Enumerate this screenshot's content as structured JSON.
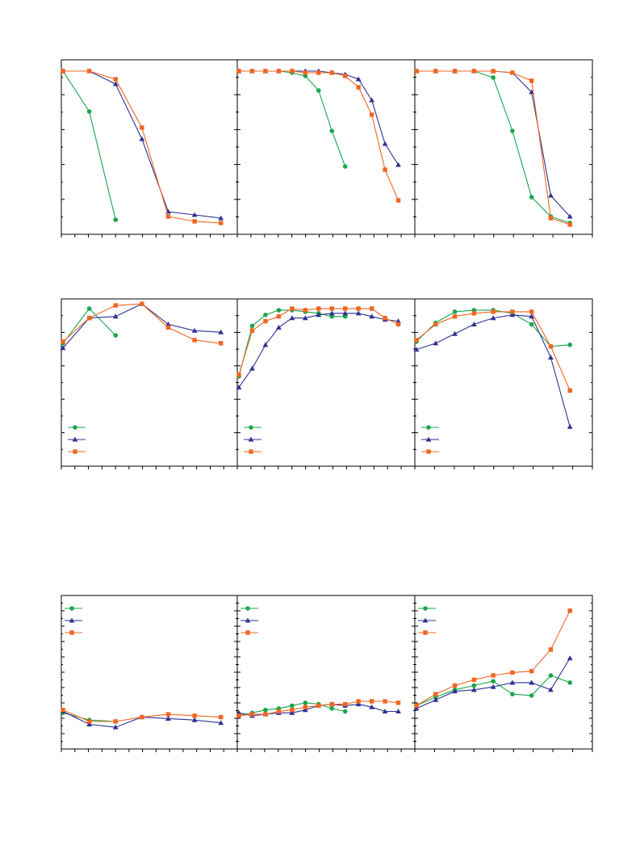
{
  "colors": {
    "green": "#1aa64a",
    "blue": "#2e3192",
    "orange": "#f26522",
    "axis": "#000000"
  },
  "chart_data": [
    {
      "type": "line",
      "row": 0,
      "col": 0,
      "ylim": [
        0,
        1.02
      ],
      "xlim": [
        0,
        13
      ],
      "series": [
        {
          "color": "green",
          "marker": "circle",
          "x": [
            0,
            2,
            4
          ],
          "y": [
            1.0,
            0.75,
            0.08
          ]
        },
        {
          "color": "blue",
          "marker": "triangle",
          "x": [
            0,
            2,
            4,
            6,
            8,
            10,
            12
          ],
          "y": [
            1.0,
            1.0,
            0.92,
            0.58,
            0.13,
            0.11,
            0.09
          ]
        },
        {
          "color": "orange",
          "marker": "square",
          "x": [
            0,
            2,
            4,
            6,
            8,
            10,
            12
          ],
          "y": [
            1.0,
            1.0,
            0.95,
            0.65,
            0.1,
            0.07,
            0.06
          ]
        }
      ]
    },
    {
      "type": "line",
      "row": 0,
      "col": 1,
      "ylim": [
        0,
        1.02
      ],
      "xlim": [
        0,
        13
      ],
      "series": [
        {
          "color": "green",
          "marker": "circle",
          "x": [
            0,
            1,
            2,
            3,
            4,
            5,
            6,
            7,
            8
          ],
          "y": [
            1.0,
            1.0,
            1.0,
            1.0,
            0.99,
            0.97,
            0.88,
            0.63,
            0.41
          ]
        },
        {
          "color": "blue",
          "marker": "triangle",
          "x": [
            0,
            1,
            2,
            3,
            4,
            5,
            6,
            7,
            8,
            9,
            10,
            11,
            12
          ],
          "y": [
            1.0,
            1.0,
            1.0,
            1.0,
            1.0,
            1.0,
            1.0,
            0.99,
            0.98,
            0.95,
            0.82,
            0.55,
            0.42
          ]
        },
        {
          "color": "orange",
          "marker": "square",
          "x": [
            0,
            1,
            2,
            3,
            4,
            5,
            6,
            7,
            8,
            9,
            10,
            11,
            12
          ],
          "y": [
            1.0,
            1.0,
            1.0,
            1.0,
            1.0,
            0.99,
            0.99,
            0.99,
            0.97,
            0.9,
            0.73,
            0.39,
            0.2
          ]
        }
      ]
    },
    {
      "type": "line",
      "row": 0,
      "col": 2,
      "ylim": [
        0,
        1.02
      ],
      "xlim": [
        0,
        9
      ],
      "series": [
        {
          "color": "green",
          "marker": "circle",
          "x": [
            0,
            1,
            2,
            3,
            4,
            5,
            6,
            7,
            8
          ],
          "y": [
            1.0,
            1.0,
            1.0,
            1.0,
            0.96,
            0.63,
            0.22,
            0.1,
            0.06
          ]
        },
        {
          "color": "blue",
          "marker": "triangle",
          "x": [
            0,
            1,
            2,
            3,
            4,
            5,
            6,
            7,
            8
          ],
          "y": [
            1.0,
            1.0,
            1.0,
            1.0,
            1.0,
            0.99,
            0.87,
            0.23,
            0.1
          ]
        },
        {
          "color": "orange",
          "marker": "square",
          "x": [
            0,
            1,
            2,
            3,
            4,
            5,
            6,
            7,
            8
          ],
          "y": [
            1.0,
            1.0,
            1.0,
            1.0,
            1.0,
            0.99,
            0.94,
            0.09,
            0.05
          ]
        }
      ]
    },
    {
      "type": "line",
      "row": 1,
      "col": 0,
      "ylim": [
        0,
        1.0
      ],
      "xlim": [
        0,
        13
      ],
      "series": [
        {
          "color": "green",
          "marker": "circle",
          "x": [
            0,
            2,
            4
          ],
          "y": [
            0.77,
            0.99,
            0.82
          ]
        },
        {
          "color": "blue",
          "marker": "triangle",
          "x": [
            0,
            2,
            4,
            6,
            8,
            10,
            12
          ],
          "y": [
            0.74,
            0.93,
            0.94,
            1.02,
            0.89,
            0.85,
            0.84
          ]
        },
        {
          "color": "orange",
          "marker": "square",
          "x": [
            0,
            2,
            4,
            6,
            8,
            10,
            12
          ],
          "y": [
            0.78,
            0.93,
            1.01,
            1.02,
            0.87,
            0.79,
            0.77
          ]
        }
      ]
    },
    {
      "type": "line",
      "row": 1,
      "col": 1,
      "ylim": [
        0,
        1.0
      ],
      "xlim": [
        0,
        13
      ],
      "series": [
        {
          "color": "green",
          "marker": "circle",
          "x": [
            0,
            1,
            2,
            3,
            4,
            5,
            6,
            7,
            8
          ],
          "y": [
            0.56,
            0.88,
            0.95,
            0.98,
            0.98,
            0.97,
            0.96,
            0.94,
            0.94
          ]
        },
        {
          "color": "blue",
          "marker": "triangle",
          "x": [
            0,
            1,
            2,
            3,
            4,
            5,
            6,
            7,
            8,
            9,
            10,
            11,
            12
          ],
          "y": [
            0.49,
            0.61,
            0.76,
            0.87,
            0.93,
            0.93,
            0.95,
            0.96,
            0.96,
            0.96,
            0.94,
            0.92,
            0.91
          ]
        },
        {
          "color": "orange",
          "marker": "square",
          "x": [
            0,
            1,
            2,
            3,
            4,
            5,
            6,
            7,
            8,
            9,
            10,
            11,
            12
          ],
          "y": [
            0.57,
            0.85,
            0.91,
            0.94,
            0.99,
            0.98,
            0.99,
            0.99,
            0.99,
            0.99,
            0.99,
            0.93,
            0.89
          ]
        }
      ]
    },
    {
      "type": "line",
      "row": 1,
      "col": 2,
      "ylim": [
        0,
        1.0
      ],
      "xlim": [
        0,
        9
      ],
      "series": [
        {
          "color": "green",
          "marker": "circle",
          "x": [
            0,
            1,
            2,
            3,
            4,
            5,
            6,
            7,
            8
          ],
          "y": [
            0.78,
            0.9,
            0.97,
            0.98,
            0.98,
            0.96,
            0.89,
            0.75,
            0.76
          ]
        },
        {
          "color": "blue",
          "marker": "triangle",
          "x": [
            0,
            1,
            2,
            3,
            4,
            5,
            6,
            7,
            8
          ],
          "y": [
            0.73,
            0.77,
            0.83,
            0.89,
            0.93,
            0.95,
            0.94,
            0.68,
            0.24
          ]
        },
        {
          "color": "orange",
          "marker": "square",
          "x": [
            0,
            1,
            2,
            3,
            4,
            5,
            6,
            7,
            8
          ],
          "y": [
            0.79,
            0.89,
            0.94,
            0.96,
            0.97,
            0.97,
            0.97,
            0.75,
            0.47
          ]
        }
      ]
    },
    {
      "type": "line",
      "row": 2,
      "col": 0,
      "ylim": [
        0,
        1.0
      ],
      "xlim": [
        0,
        13
      ],
      "series": [
        {
          "color": "green",
          "marker": "circle",
          "x": [
            0,
            2,
            4
          ],
          "y": [
            0.24,
            0.19,
            0.18
          ]
        },
        {
          "color": "blue",
          "marker": "triangle",
          "x": [
            0,
            2,
            4,
            6,
            8,
            10,
            12
          ],
          "y": [
            0.25,
            0.16,
            0.14,
            0.21,
            0.2,
            0.19,
            0.17
          ]
        },
        {
          "color": "orange",
          "marker": "square",
          "x": [
            0,
            2,
            4,
            6,
            8,
            10,
            12
          ],
          "y": [
            0.26,
            0.18,
            0.18,
            0.21,
            0.23,
            0.22,
            0.21
          ]
        }
      ]
    },
    {
      "type": "line",
      "row": 2,
      "col": 1,
      "ylim": [
        0,
        1.0
      ],
      "xlim": [
        0,
        13
      ],
      "series": [
        {
          "color": "green",
          "marker": "circle",
          "x": [
            0,
            1,
            2,
            3,
            4,
            5,
            6,
            7,
            8
          ],
          "y": [
            0.22,
            0.24,
            0.26,
            0.27,
            0.29,
            0.31,
            0.3,
            0.27,
            0.25
          ]
        },
        {
          "color": "blue",
          "marker": "triangle",
          "x": [
            0,
            1,
            2,
            3,
            4,
            5,
            6,
            7,
            8,
            9,
            10,
            11,
            12
          ],
          "y": [
            0.24,
            0.22,
            0.23,
            0.24,
            0.24,
            0.26,
            0.29,
            0.3,
            0.29,
            0.3,
            0.28,
            0.25,
            0.25
          ]
        },
        {
          "color": "orange",
          "marker": "square",
          "x": [
            0,
            1,
            2,
            3,
            4,
            5,
            6,
            7,
            8,
            9,
            10,
            11,
            12
          ],
          "y": [
            0.22,
            0.23,
            0.23,
            0.25,
            0.26,
            0.28,
            0.29,
            0.3,
            0.3,
            0.32,
            0.32,
            0.32,
            0.31
          ]
        }
      ]
    },
    {
      "type": "line",
      "row": 2,
      "col": 2,
      "ylim": [
        0,
        1.0
      ],
      "xlim": [
        0,
        9
      ],
      "series": [
        {
          "color": "green",
          "marker": "circle",
          "x": [
            0,
            1,
            2,
            3,
            4,
            5,
            6,
            7,
            8
          ],
          "y": [
            0.29,
            0.35,
            0.4,
            0.43,
            0.46,
            0.37,
            0.36,
            0.5,
            0.45
          ]
        },
        {
          "color": "blue",
          "marker": "triangle",
          "x": [
            0,
            1,
            2,
            3,
            4,
            5,
            6,
            7,
            8
          ],
          "y": [
            0.27,
            0.33,
            0.39,
            0.4,
            0.42,
            0.45,
            0.45,
            0.4,
            0.62
          ]
        },
        {
          "color": "orange",
          "marker": "square",
          "x": [
            0,
            1,
            2,
            3,
            4,
            5,
            6,
            7,
            8
          ],
          "y": [
            0.29,
            0.37,
            0.43,
            0.47,
            0.5,
            0.52,
            0.53,
            0.68,
            0.95
          ]
        }
      ]
    }
  ]
}
